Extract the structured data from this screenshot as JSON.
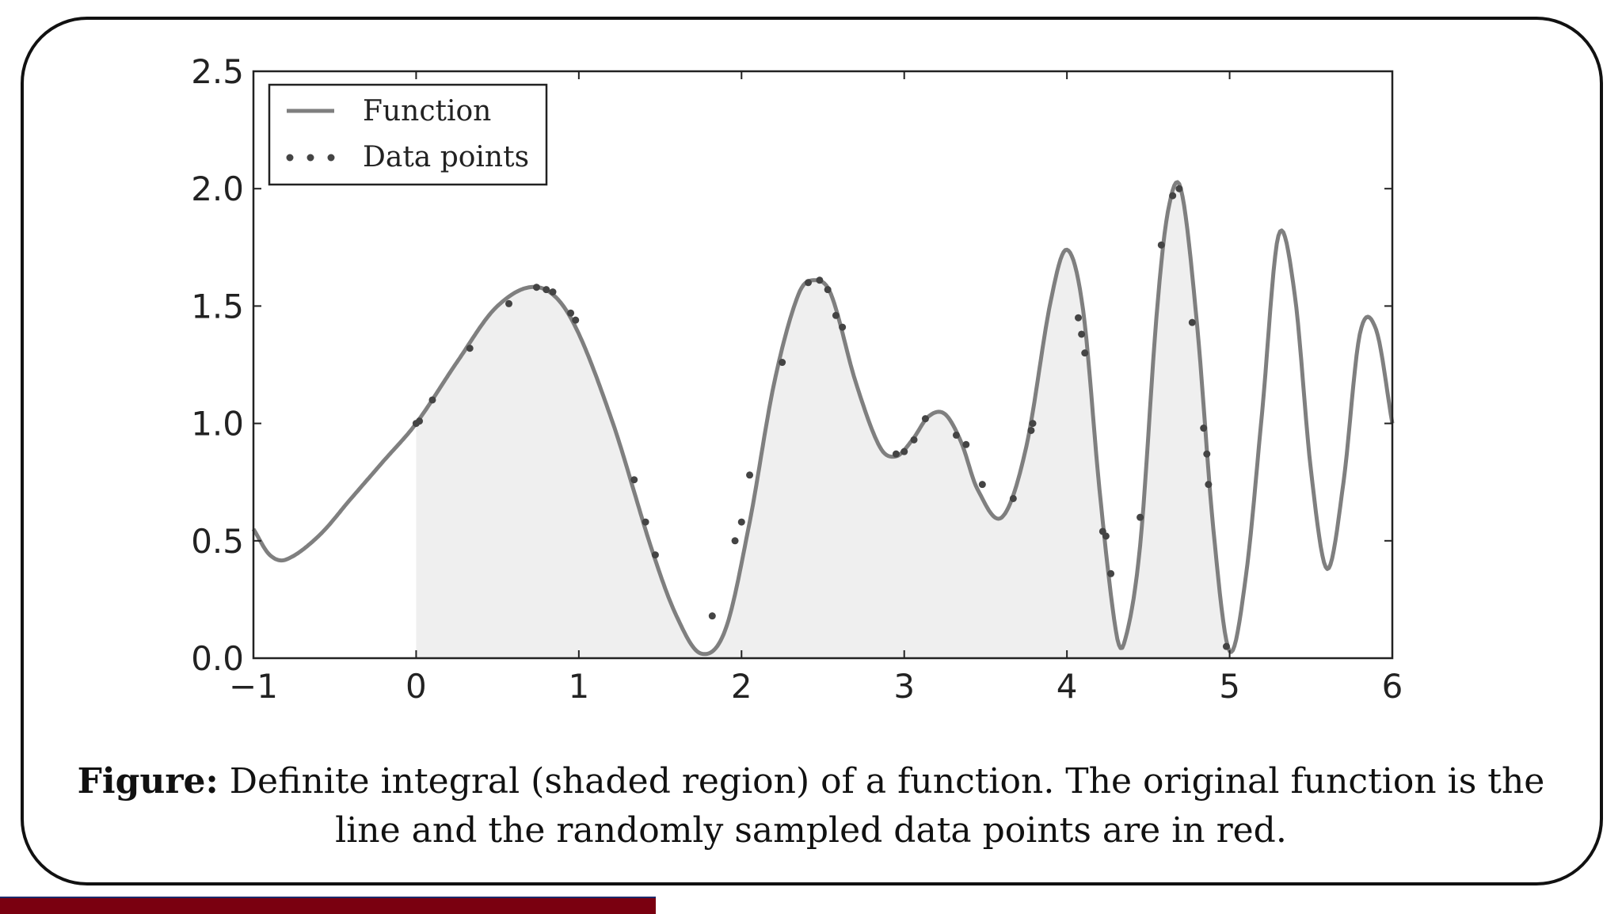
{
  "chart_data": {
    "type": "line",
    "xlim": [
      -1,
      6
    ],
    "ylim": [
      0,
      2.5
    ],
    "x_ticks": [
      -1,
      0,
      1,
      2,
      3,
      4,
      5,
      6
    ],
    "x_tick_labels": [
      "−1",
      "0",
      "1",
      "2",
      "3",
      "4",
      "5",
      "6"
    ],
    "y_ticks": [
      0.0,
      0.5,
      1.0,
      1.5,
      2.0,
      2.5
    ],
    "y_tick_labels": [
      "0.0",
      "0.5",
      "1.0",
      "1.5",
      "2.0",
      "2.5"
    ],
    "grid": false,
    "legend_position": "top-left",
    "shaded_interval": [
      0,
      5
    ],
    "series": [
      {
        "name": "Function",
        "style": "line",
        "color": "#7f7f7f",
        "x": [
          -1,
          -0.9,
          -0.8,
          -0.6,
          -0.4,
          -0.2,
          0,
          0.25,
          0.5,
          0.75,
          0.95,
          1.2,
          1.45,
          1.6,
          1.75,
          1.9,
          2.05,
          2.2,
          2.35,
          2.45,
          2.55,
          2.7,
          2.85,
          2.95,
          3.05,
          3.15,
          3.25,
          3.35,
          3.45,
          3.6,
          3.75,
          3.9,
          4.0,
          4.1,
          4.2,
          4.3,
          4.35,
          4.45,
          4.55,
          4.62,
          4.7,
          4.8,
          4.9,
          5.0,
          5.1,
          5.2,
          5.3,
          5.4,
          5.5,
          5.6,
          5.7,
          5.8,
          5.9,
          6.0
        ],
        "y": [
          0.55,
          0.44,
          0.42,
          0.52,
          0.68,
          0.84,
          1.0,
          1.26,
          1.5,
          1.58,
          1.45,
          1.02,
          0.46,
          0.18,
          0.02,
          0.12,
          0.58,
          1.17,
          1.55,
          1.61,
          1.55,
          1.18,
          0.9,
          0.86,
          0.93,
          1.03,
          1.04,
          0.92,
          0.72,
          0.6,
          0.9,
          1.52,
          1.74,
          1.48,
          0.72,
          0.12,
          0.06,
          0.48,
          1.45,
          1.9,
          2.0,
          1.42,
          0.55,
          0.03,
          0.35,
          1.05,
          1.8,
          1.55,
          0.8,
          0.38,
          0.75,
          1.38,
          1.4,
          1.0
        ]
      },
      {
        "name": "Data points",
        "style": "points",
        "color": "#444444",
        "x": [
          0.0,
          0.02,
          0.1,
          0.33,
          0.57,
          0.74,
          0.8,
          0.84,
          0.95,
          0.98,
          1.34,
          1.41,
          1.47,
          1.82,
          1.96,
          2.0,
          2.05,
          2.25,
          2.41,
          2.48,
          2.53,
          2.58,
          2.62,
          2.95,
          3.0,
          3.06,
          3.13,
          3.32,
          3.38,
          3.48,
          3.67,
          3.78,
          3.79,
          4.07,
          4.09,
          4.11,
          4.22,
          4.24,
          4.27,
          4.45,
          4.58,
          4.65,
          4.69,
          4.77,
          4.84,
          4.86,
          4.87,
          4.98
        ],
        "y": [
          1.0,
          1.01,
          1.1,
          1.32,
          1.51,
          1.58,
          1.57,
          1.56,
          1.47,
          1.44,
          0.76,
          0.58,
          0.44,
          0.18,
          0.5,
          0.58,
          0.78,
          1.26,
          1.6,
          1.61,
          1.57,
          1.46,
          1.41,
          0.87,
          0.88,
          0.93,
          1.02,
          0.95,
          0.91,
          0.74,
          0.68,
          0.97,
          1.0,
          1.45,
          1.38,
          1.3,
          0.54,
          0.52,
          0.36,
          0.6,
          1.76,
          1.97,
          2.0,
          1.43,
          0.98,
          0.87,
          0.74,
          0.05
        ]
      }
    ]
  },
  "caption": {
    "label": "Figure:",
    "text": " Definite integral (shaded region) of a function. The original function is the line and the randomly sampled data points are in red."
  },
  "colors": {
    "frame_border": "#111111",
    "shade": "#efefef",
    "axis": "#222222",
    "footer_bar": "#7a0010",
    "footer_bar_edge": "#1c2a6b"
  }
}
